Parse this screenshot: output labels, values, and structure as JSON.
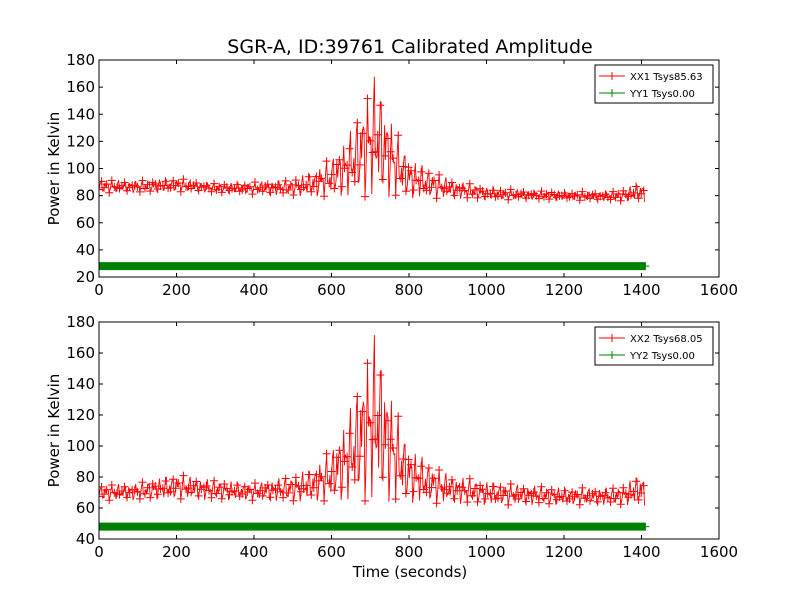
{
  "figure": {
    "title": "SGR-A, ID:39761 Calibrated Amplitude",
    "xlabel": "Time (seconds)"
  },
  "colors": {
    "xx": "#ff0000",
    "yy": "#008000"
  },
  "chart_data": [
    {
      "type": "line",
      "ylabel": "Power in Kelvin",
      "xlim": [
        0,
        1600
      ],
      "ylim": [
        20,
        180
      ],
      "xticks": [
        0,
        200,
        400,
        600,
        800,
        1000,
        1200,
        1400,
        1600
      ],
      "yticks": [
        20,
        40,
        60,
        80,
        100,
        120,
        140,
        160,
        180
      ],
      "legend": "top-right",
      "series": [
        {
          "name": "XX1 Tsys85.63",
          "color": "#ff0000",
          "marker": "+",
          "x": [
            0,
            100,
            200,
            300,
            400,
            500,
            550,
            600,
            650,
            680,
            700,
            710,
            720,
            740,
            760,
            800,
            850,
            900,
            1000,
            1100,
            1200,
            1300,
            1350,
            1400,
            1410
          ],
          "y_low": [
            82,
            82,
            83,
            82,
            81,
            80,
            79,
            79,
            79,
            78,
            78,
            78,
            78,
            78,
            78,
            78,
            78,
            78,
            77,
            77,
            77,
            76,
            76,
            75,
            75
          ],
          "y_high": [
            92,
            91,
            93,
            89,
            90,
            92,
            98,
            108,
            128,
            150,
            162,
            168,
            165,
            150,
            132,
            108,
            100,
            93,
            86,
            84,
            83,
            83,
            84,
            91,
            85
          ]
        },
        {
          "name": "YY1 Tsys0.00",
          "color": "#008000",
          "marker": "+",
          "x": [
            0,
            1410
          ],
          "y": [
            28,
            28
          ]
        }
      ]
    },
    {
      "type": "line",
      "ylabel": "Power in Kelvin",
      "xlim": [
        0,
        1600
      ],
      "ylim": [
        40,
        180
      ],
      "xticks": [
        0,
        200,
        400,
        600,
        800,
        1000,
        1200,
        1400,
        1600
      ],
      "yticks": [
        40,
        60,
        80,
        100,
        120,
        140,
        160,
        180
      ],
      "legend": "top-right",
      "series": [
        {
          "name": "XX2 Tsys68.05",
          "color": "#ff0000",
          "marker": "+",
          "x": [
            0,
            100,
            200,
            300,
            400,
            500,
            550,
            600,
            650,
            680,
            700,
            710,
            720,
            740,
            760,
            800,
            850,
            900,
            1000,
            1100,
            1200,
            1300,
            1350,
            1400,
            1410
          ],
          "y_low": [
            65,
            65,
            66,
            65,
            65,
            64,
            64,
            64,
            64,
            63,
            63,
            63,
            63,
            63,
            63,
            63,
            63,
            63,
            62,
            62,
            62,
            62,
            62,
            61,
            61
          ],
          "y_high": [
            75,
            76,
            82,
            78,
            76,
            81,
            86,
            98,
            125,
            152,
            166,
            172,
            168,
            150,
            128,
            100,
            90,
            82,
            77,
            75,
            73,
            73,
            74,
            83,
            78
          ]
        },
        {
          "name": "YY2 Tsys0.00",
          "color": "#008000",
          "marker": "+",
          "x": [
            0,
            1410
          ],
          "y": [
            48,
            48
          ]
        }
      ]
    }
  ]
}
